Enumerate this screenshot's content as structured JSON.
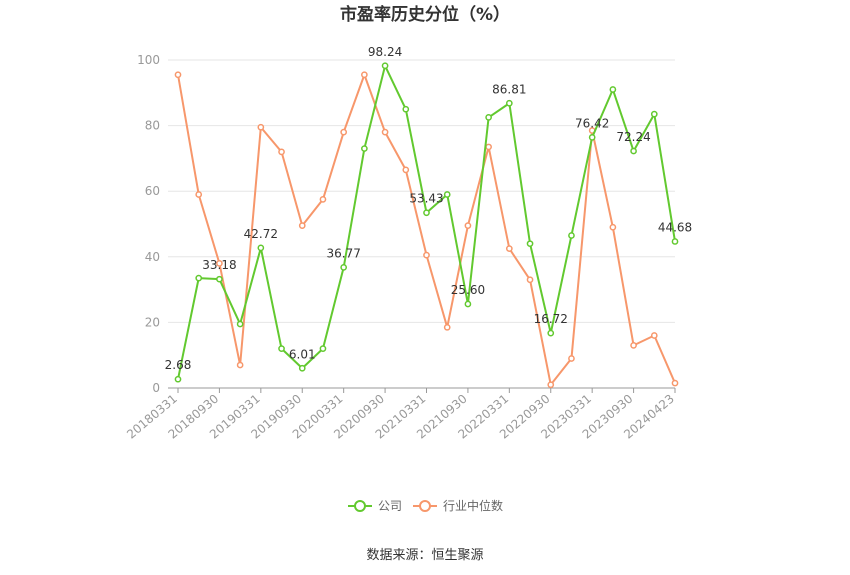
{
  "chart_data": {
    "type": "line",
    "title": "市盈率历史分位（%）",
    "source": "数据来源：恒生聚源",
    "ylim": [
      0,
      100
    ],
    "yticks": [
      "0",
      "20",
      "40",
      "60",
      "80",
      "100"
    ],
    "xtick_labels": [
      "20180331",
      "20180930",
      "20190331",
      "20190930",
      "20200331",
      "20200930",
      "20210331",
      "20210930",
      "20220331",
      "20220930",
      "20230331",
      "20230930",
      "20240423"
    ],
    "grid": true,
    "legend_position": "bottom",
    "series": [
      {
        "name": "公司",
        "color": "#62c92f",
        "values": [
          2.68,
          33.5,
          33.18,
          19.5,
          42.72,
          12.0,
          6.01,
          12.0,
          36.77,
          73.0,
          98.24,
          85.0,
          53.43,
          59.0,
          25.6,
          82.5,
          86.81,
          44.0,
          16.72,
          46.5,
          76.42,
          91.0,
          72.24,
          83.5,
          44.68
        ]
      },
      {
        "name": "行业中位数",
        "color": "#f7976b",
        "values": [
          95.5,
          59.0,
          38.0,
          7.0,
          79.5,
          72.0,
          49.5,
          57.5,
          78.0,
          95.5,
          78.0,
          66.5,
          40.5,
          18.5,
          49.5,
          73.5,
          42.5,
          33.0,
          1.0,
          9.0,
          78.5,
          49.0,
          13.0,
          16.0,
          1.5
        ]
      }
    ],
    "data_labels": [
      {
        "index": 0,
        "text": "2.68"
      },
      {
        "index": 2,
        "text": "33.18"
      },
      {
        "index": 4,
        "text": "42.72"
      },
      {
        "index": 6,
        "text": "6.01"
      },
      {
        "index": 8,
        "text": "36.77"
      },
      {
        "index": 10,
        "text": "98.24"
      },
      {
        "index": 12,
        "text": "53.43"
      },
      {
        "index": 14,
        "text": "25.60"
      },
      {
        "index": 16,
        "text": "86.81"
      },
      {
        "index": 18,
        "text": "16.72"
      },
      {
        "index": 20,
        "text": "76.42"
      },
      {
        "index": 22,
        "text": "72.24"
      },
      {
        "index": 24,
        "text": "44.68"
      }
    ]
  }
}
